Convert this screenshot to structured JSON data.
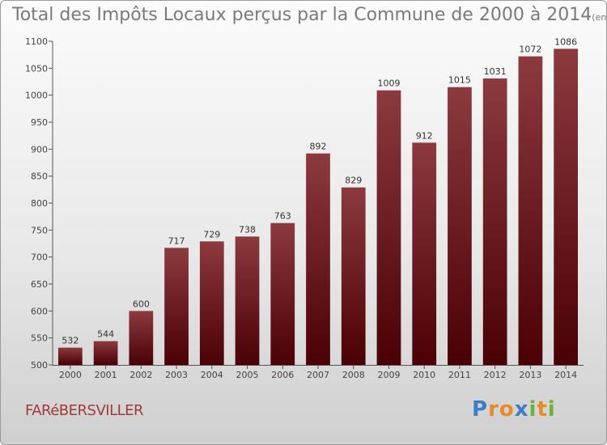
{
  "title": "Total des Impôts Locaux perçus par la Commune de 2000 à 2014",
  "subtitle": "(en milliers d'€)",
  "commune": "FARéBERSVILLER",
  "logo": {
    "text": "Proxiti",
    "letters": [
      {
        "char": "P",
        "color": "#3a7fc4"
      },
      {
        "char": "r",
        "color": "#e8892a"
      },
      {
        "char": "o",
        "color": "#e8892a"
      },
      {
        "char": "x",
        "color": "#3a7fc4"
      },
      {
        "char": "i",
        "color": "#6bb33c"
      },
      {
        "char": "t",
        "color": "#e8892a"
      },
      {
        "char": "i",
        "color": "#6bb33c"
      }
    ]
  },
  "colors": {
    "bar_top": "#8c3a3e",
    "bar_bottom": "#4a0004",
    "axis": "#555555"
  },
  "chart_data": {
    "type": "bar",
    "title": "Total des Impôts Locaux perçus par la Commune de 2000 à 2014",
    "ylabel": "en milliers d'€",
    "xlabel": "",
    "categories": [
      "2000",
      "2001",
      "2002",
      "2003",
      "2004",
      "2005",
      "2006",
      "2007",
      "2008",
      "2009",
      "2010",
      "2011",
      "2012",
      "2013",
      "2014"
    ],
    "values": [
      532,
      544,
      600,
      717,
      729,
      738,
      763,
      892,
      829,
      1009,
      912,
      1015,
      1031,
      1072,
      1086
    ],
    "ylim": [
      500,
      1100
    ],
    "yticks": [
      500,
      550,
      600,
      650,
      700,
      750,
      800,
      850,
      900,
      950,
      1000,
      1050,
      1100
    ],
    "grid": false,
    "legend": "none"
  }
}
